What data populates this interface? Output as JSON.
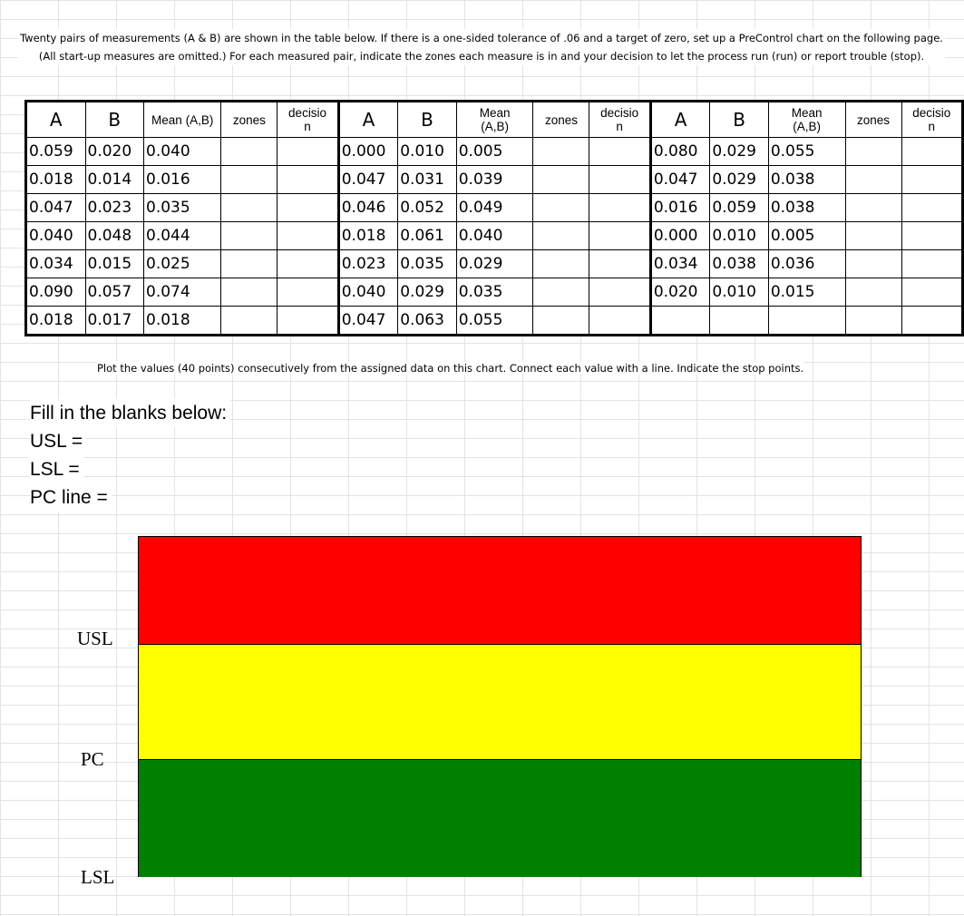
{
  "intro_text": "Twenty pairs of measurements (A & B) are shown in the table below. If there is a one-sided tolerance of .06 and a target of zero, set up a PreControl chart on the following page. (All start-up measures are omitted.) For each measured pair, indicate the zones each measure is in and your decision to let the process run (run) or report trouble (stop).",
  "table": {
    "headers": {
      "a": "A",
      "b": "B",
      "mean": "Mean (A,B)",
      "zones": "zones",
      "decision": "decision"
    },
    "groups": [
      {
        "rows": [
          [
            "0.059",
            "0.020",
            "0.040"
          ],
          [
            "0.018",
            "0.014",
            "0.016"
          ],
          [
            "0.047",
            "0.023",
            "0.035"
          ],
          [
            "0.040",
            "0.048",
            "0.044"
          ],
          [
            "0.034",
            "0.015",
            "0.025"
          ],
          [
            "0.090",
            "0.057",
            "0.074"
          ],
          [
            "0.018",
            "0.017",
            "0.018"
          ]
        ]
      },
      {
        "rows": [
          [
            "0.000",
            "0.010",
            "0.005"
          ],
          [
            "0.047",
            "0.031",
            "0.039"
          ],
          [
            "0.046",
            "0.052",
            "0.049"
          ],
          [
            "0.018",
            "0.061",
            "0.040"
          ],
          [
            "0.023",
            "0.035",
            "0.029"
          ],
          [
            "0.040",
            "0.029",
            "0.035"
          ],
          [
            "0.047",
            "0.063",
            "0.055"
          ]
        ]
      },
      {
        "rows": [
          [
            "0.080",
            "0.029",
            "0.055"
          ],
          [
            "0.047",
            "0.029",
            "0.038"
          ],
          [
            "0.016",
            "0.059",
            "0.038"
          ],
          [
            "0.000",
            "0.010",
            "0.005"
          ],
          [
            "0.034",
            "0.038",
            "0.036"
          ],
          [
            "0.020",
            "0.010",
            "0.015"
          ],
          [
            "",
            "",
            ""
          ]
        ]
      }
    ]
  },
  "plot_instruction": "Plot the values (40 points) consecutively from the assigned data on this chart. Connect each value with a line. Indicate the stop points.",
  "blanks": {
    "title": "Fill in the blanks below:",
    "usl": "USL =",
    "lsl": "LSL =",
    "pc_line": "PC line ="
  },
  "precontrol_chart": {
    "zones": [
      {
        "name": "red",
        "color": "#ff0000",
        "fraction": 0.316
      },
      {
        "name": "yellow",
        "color": "#ffff00",
        "fraction": 0.34
      },
      {
        "name": "green",
        "color": "#008000",
        "fraction": 0.344
      }
    ],
    "labels": {
      "usl": "USL",
      "pc": "PC",
      "lsl": "LSL"
    }
  }
}
